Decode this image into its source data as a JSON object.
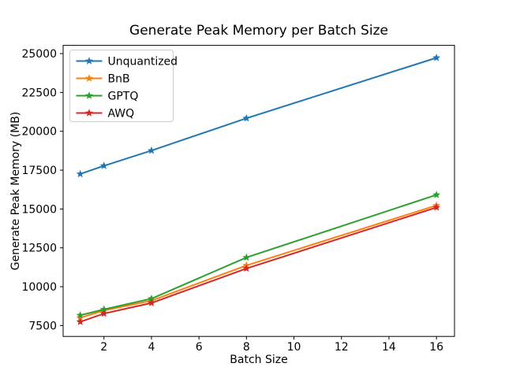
{
  "figure": {
    "background": "#ffffff",
    "axes_edge_color": "#000000"
  },
  "chart_data": {
    "type": "line",
    "title": "Generate Peak Memory per Batch Size",
    "xlabel": "Batch Size",
    "ylabel": "Generate Peak Memory (MB)",
    "marker": "star",
    "grid": false,
    "x": [
      1,
      2,
      4,
      8,
      16
    ],
    "series": [
      {
        "name": "Unquantized",
        "color": "#1f77b4",
        "values": [
          17250,
          17780,
          18760,
          20840,
          24730
        ]
      },
      {
        "name": "BnB",
        "color": "#ff7f0e",
        "values": [
          8000,
          8470,
          9100,
          11370,
          15230
        ]
      },
      {
        "name": "GPTQ",
        "color": "#2ca02c",
        "values": [
          8160,
          8540,
          9230,
          11880,
          15910
        ]
      },
      {
        "name": "AWQ",
        "color": "#d62728",
        "values": [
          7740,
          8270,
          8950,
          11170,
          15100
        ]
      }
    ],
    "xticks": [
      2,
      4,
      6,
      8,
      10,
      12,
      14,
      16
    ],
    "yticks": [
      7500,
      10000,
      12500,
      15000,
      17500,
      20000,
      22500,
      25000
    ],
    "xlim": [
      0.28,
      16.76
    ],
    "ylim": [
      6800,
      25530
    ],
    "legend": {
      "position": "upper left",
      "entries": [
        "Unquantized",
        "BnB",
        "GPTQ",
        "AWQ"
      ],
      "frame_color": "#cccccc"
    }
  }
}
